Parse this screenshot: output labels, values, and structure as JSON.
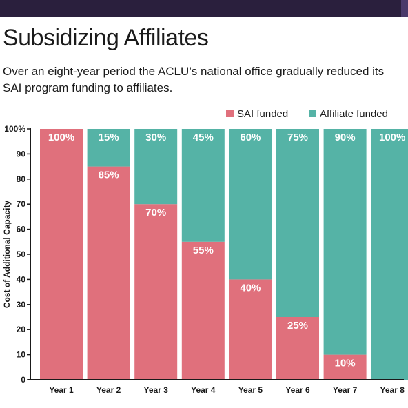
{
  "title": "Subsidizing Affiliates",
  "subtitle": "Over an eight-year period the ACLU’s national office gradually reduced its SAI program funding to affiliates.",
  "colors": {
    "sai": "#e0707c",
    "affiliate": "#55b3a6",
    "header": "#2a1f3d"
  },
  "chart_data": {
    "type": "bar",
    "stacked": true,
    "categories": [
      "Year 1",
      "Year 2",
      "Year 3",
      "Year 4",
      "Year 5",
      "Year 6",
      "Year 7",
      "Year 8"
    ],
    "series": [
      {
        "name": "SAI funded",
        "values": [
          100,
          85,
          70,
          55,
          40,
          25,
          10,
          0
        ],
        "labels": [
          "100%",
          "85%",
          "70%",
          "55%",
          "40%",
          "25%",
          "10%",
          ""
        ]
      },
      {
        "name": "Affiliate funded",
        "values": [
          0,
          15,
          30,
          45,
          60,
          75,
          90,
          100
        ],
        "labels": [
          "",
          "15%",
          "30%",
          "45%",
          "60%",
          "75%",
          "90%",
          "100%"
        ]
      }
    ],
    "ylabel": "Cost of Additional Capacity",
    "xlabel": "",
    "ylim": [
      0,
      100
    ],
    "yticks": [
      "0",
      "10",
      "20",
      "30",
      "40",
      "50",
      "60",
      "70",
      "80",
      "90",
      "100%"
    ],
    "legend_position": "top-right",
    "grid": false
  }
}
